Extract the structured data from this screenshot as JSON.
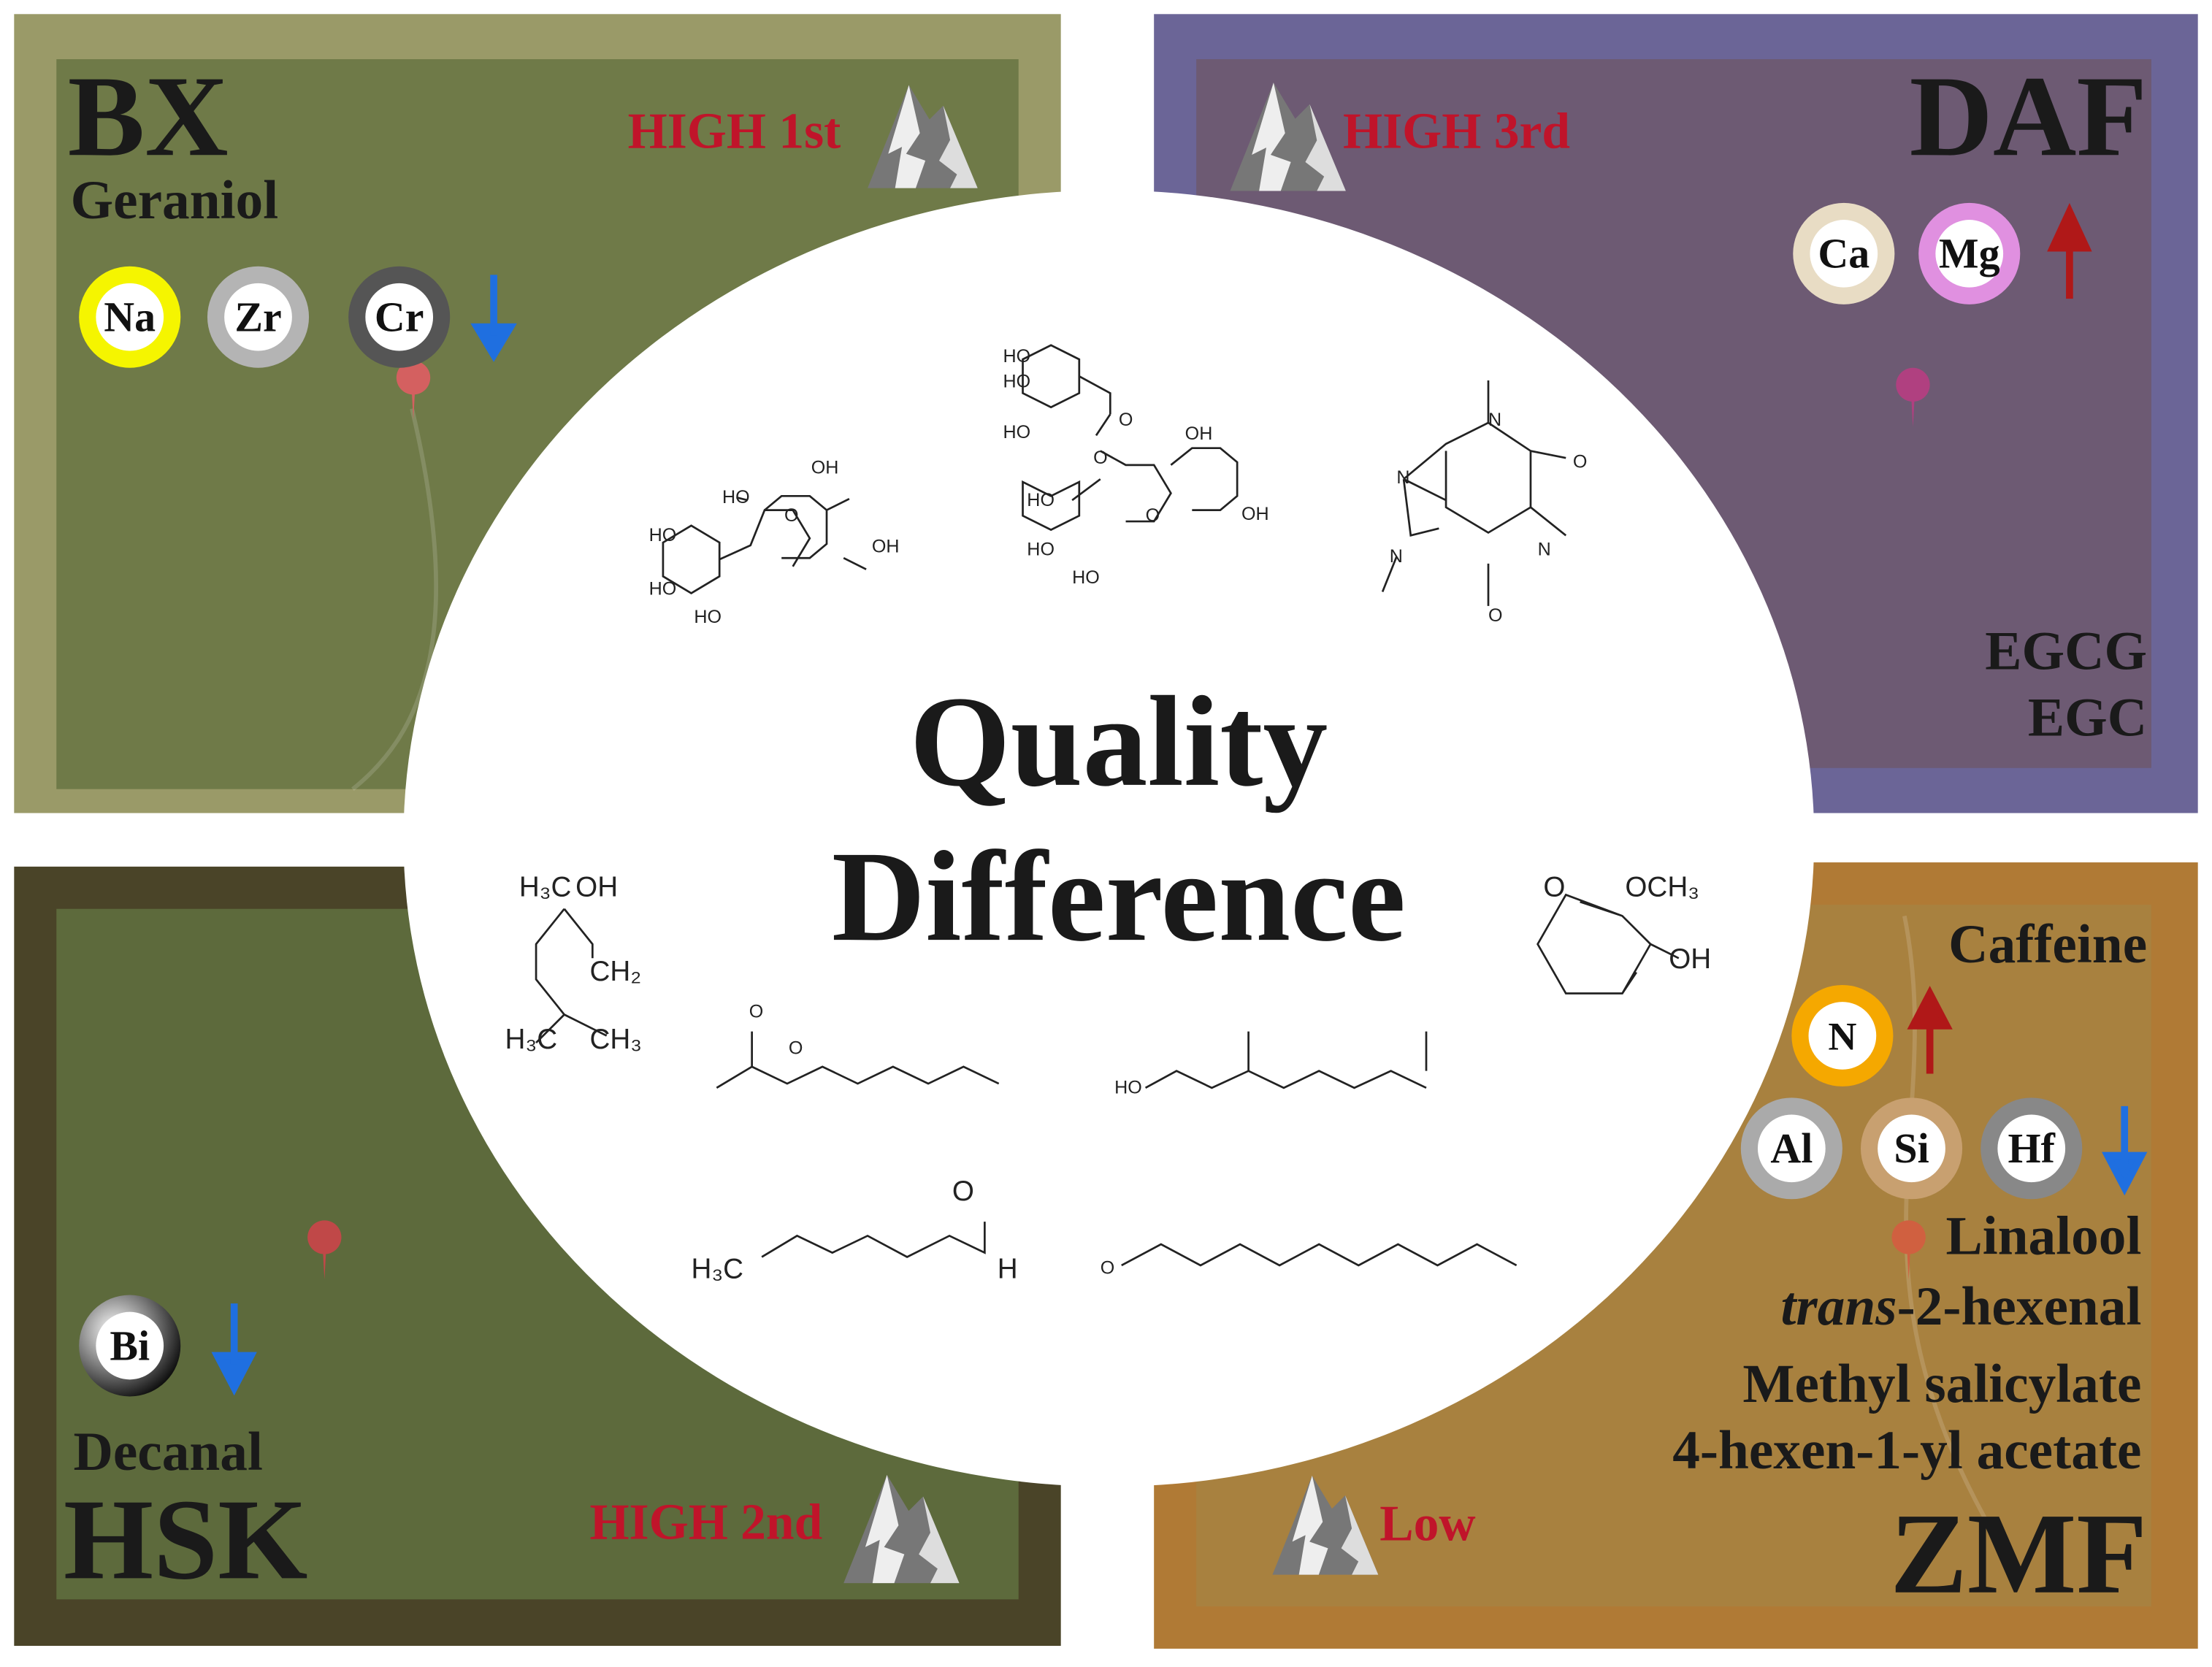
{
  "title": [
    "Quality",
    "Difference"
  ],
  "panels": [
    {
      "name": "BX",
      "altitude": "HIGH 1st",
      "compounds": [
        "Geraniol"
      ],
      "elements": [
        "Na",
        "Zr",
        "Cr"
      ]
    },
    {
      "name": "DAF",
      "altitude": "HIGH 3rd",
      "compounds": [
        "EGCG",
        "EGC"
      ],
      "elements": [
        "Ca",
        "Mg"
      ]
    },
    {
      "name": "HSK",
      "altitude": "HIGH 2nd",
      "compounds": [
        "Decanal"
      ],
      "elements": [
        "Bi"
      ]
    },
    {
      "name": "ZMF",
      "altitude": "Low",
      "compounds": [
        "Caffeine",
        "Linalool",
        {
          "italic": "trans",
          "text": "-2-hexenal"
        },
        "Methyl salicylate",
        "4-hexen-1-yl acetate"
      ],
      "elements": [
        "N",
        "Al",
        "Si",
        "Hf"
      ]
    }
  ],
  "structures": [
    [
      "HO",
      "OH",
      "HO",
      "OH",
      "HO",
      "HO",
      "O"
    ],
    [
      "HO",
      "HO",
      "HO",
      "O",
      "O",
      "OH",
      "HO",
      "OH",
      "O",
      "HO",
      "HO"
    ],
    [
      "N",
      "N",
      "O",
      "N",
      "N",
      "O"
    ],
    [
      "H₃C",
      "OH",
      "CH₂",
      "H₃C",
      "CH₃"
    ],
    [
      "O",
      "OCH₃",
      "OH"
    ],
    [
      "O",
      "O"
    ],
    [
      "HO"
    ],
    [
      "H₃C",
      "O",
      "H"
    ],
    [
      "O"
    ]
  ]
}
